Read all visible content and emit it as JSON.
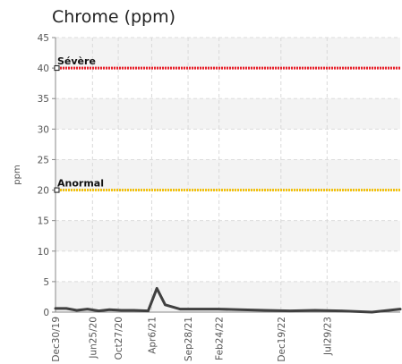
{
  "chart_data": {
    "type": "line",
    "title": "Chrome (ppm)",
    "ylabel": "ppm",
    "ylim": [
      0,
      45
    ],
    "y_ticks": [
      0,
      5,
      10,
      15,
      20,
      25,
      30,
      35,
      40,
      45
    ],
    "x_range": [
      "2019-12-30",
      "2024-07-15"
    ],
    "x_ticks": [
      {
        "date": "2019-12-30",
        "label": "Dec30/19"
      },
      {
        "date": "2020-06-25",
        "label": "Jun25/20"
      },
      {
        "date": "2020-10-27",
        "label": "Oct27/20"
      },
      {
        "date": "2021-04-06",
        "label": "Apr6/21"
      },
      {
        "date": "2021-09-28",
        "label": "Sep28/21"
      },
      {
        "date": "2022-02-24",
        "label": "Feb24/22"
      },
      {
        "date": "2022-12-19",
        "label": "Dec19/22"
      },
      {
        "date": "2023-07-29",
        "label": "Jul29/23"
      }
    ],
    "grid": true,
    "thresholds": [
      {
        "label": "Sévère",
        "value": 40,
        "color": "#e8202a"
      },
      {
        "label": "Anormal",
        "value": 20,
        "color": "#f2c10f"
      }
    ],
    "series": [
      {
        "color": "#404040",
        "points": [
          {
            "x": "2019-12-30",
            "y": 0.6
          },
          {
            "x": "2020-02-20",
            "y": 0.6
          },
          {
            "x": "2020-04-10",
            "y": 0.3
          },
          {
            "x": "2020-06-01",
            "y": 0.5
          },
          {
            "x": "2020-07-25",
            "y": 0.2
          },
          {
            "x": "2020-09-15",
            "y": 0.4
          },
          {
            "x": "2020-11-10",
            "y": 0.3
          },
          {
            "x": "2021-01-10",
            "y": 0.3
          },
          {
            "x": "2021-03-20",
            "y": 0.2
          },
          {
            "x": "2021-05-01",
            "y": 3.9
          },
          {
            "x": "2021-06-10",
            "y": 1.2
          },
          {
            "x": "2021-08-20",
            "y": 0.5
          },
          {
            "x": "2021-11-15",
            "y": 0.5
          },
          {
            "x": "2022-02-20",
            "y": 0.5
          },
          {
            "x": "2022-06-01",
            "y": 0.4
          },
          {
            "x": "2022-10-01",
            "y": 0.3
          },
          {
            "x": "2023-02-01",
            "y": 0.2
          },
          {
            "x": "2023-06-01",
            "y": 0.3
          },
          {
            "x": "2023-10-01",
            "y": 0.2
          },
          {
            "x": "2024-03-01",
            "y": 0.0
          },
          {
            "x": "2024-07-15",
            "y": 0.5
          }
        ]
      }
    ]
  }
}
